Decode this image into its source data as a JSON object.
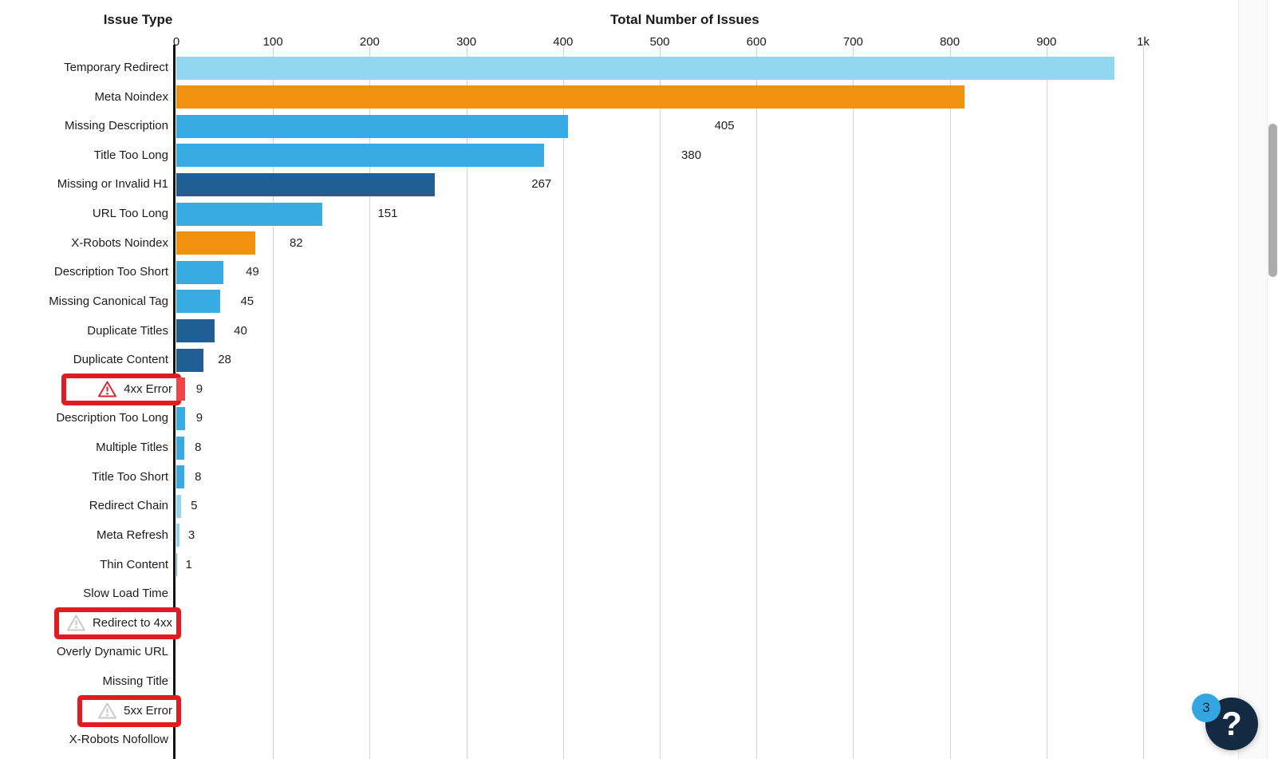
{
  "chart_data": {
    "type": "bar",
    "orientation": "horizontal",
    "title": "Total Number of Issues",
    "category_axis_label": "Issue Type",
    "xlim": [
      0,
      1000
    ],
    "x_ticks": [
      "0",
      "100",
      "200",
      "300",
      "400",
      "500",
      "600",
      "700",
      "800",
      "900",
      "1k"
    ],
    "grid": "vertical-gridlines-on",
    "rows": [
      {
        "label": "Temporary Redirect",
        "value": 970,
        "color": "light_blue",
        "show_value": false,
        "highlight": false,
        "icon": null
      },
      {
        "label": "Meta Noindex",
        "value": 815,
        "color": "orange",
        "show_value": false,
        "highlight": false,
        "icon": null
      },
      {
        "label": "Missing Description",
        "value": 405,
        "color": "blue",
        "show_value": true,
        "highlight": false,
        "icon": null
      },
      {
        "label": "Title Too Long",
        "value": 380,
        "color": "blue",
        "show_value": true,
        "highlight": false,
        "icon": null
      },
      {
        "label": "Missing or Invalid H1",
        "value": 267,
        "color": "dark_blue",
        "show_value": true,
        "highlight": false,
        "icon": null
      },
      {
        "label": "URL Too Long",
        "value": 151,
        "color": "blue",
        "show_value": true,
        "highlight": false,
        "icon": null
      },
      {
        "label": "X-Robots Noindex",
        "value": 82,
        "color": "orange",
        "show_value": true,
        "highlight": false,
        "icon": null
      },
      {
        "label": "Description Too Short",
        "value": 49,
        "color": "blue",
        "show_value": true,
        "highlight": false,
        "icon": null
      },
      {
        "label": "Missing Canonical Tag",
        "value": 45,
        "color": "blue",
        "show_value": true,
        "highlight": false,
        "icon": null
      },
      {
        "label": "Duplicate Titles",
        "value": 40,
        "color": "dark_blue",
        "show_value": true,
        "highlight": false,
        "icon": null
      },
      {
        "label": "Duplicate Content",
        "value": 28,
        "color": "dark_blue",
        "show_value": true,
        "highlight": false,
        "icon": null
      },
      {
        "label": "4xx Error",
        "value": 9,
        "color": "red",
        "show_value": true,
        "highlight": true,
        "icon": "warning-red"
      },
      {
        "label": "Description Too Long",
        "value": 9,
        "color": "blue",
        "show_value": true,
        "highlight": false,
        "icon": null
      },
      {
        "label": "Multiple Titles",
        "value": 8,
        "color": "blue",
        "show_value": true,
        "highlight": false,
        "icon": null
      },
      {
        "label": "Title Too Short",
        "value": 8,
        "color": "blue",
        "show_value": true,
        "highlight": false,
        "icon": null
      },
      {
        "label": "Redirect Chain",
        "value": 5,
        "color": "light_blue",
        "show_value": true,
        "highlight": false,
        "icon": null
      },
      {
        "label": "Meta Refresh",
        "value": 3,
        "color": "light_blue",
        "show_value": true,
        "highlight": false,
        "icon": null
      },
      {
        "label": "Thin Content",
        "value": 1,
        "color": "blue",
        "show_value": true,
        "highlight": false,
        "icon": null
      },
      {
        "label": "Slow Load Time",
        "value": 0,
        "color": null,
        "show_value": false,
        "highlight": false,
        "icon": null
      },
      {
        "label": "Redirect to 4xx",
        "value": 0,
        "color": null,
        "show_value": false,
        "highlight": true,
        "icon": "warning-gray"
      },
      {
        "label": "Overly Dynamic URL",
        "value": 0,
        "color": null,
        "show_value": false,
        "highlight": false,
        "icon": null
      },
      {
        "label": "Missing Title",
        "value": 0,
        "color": null,
        "show_value": false,
        "highlight": false,
        "icon": null
      },
      {
        "label": "5xx Error",
        "value": 0,
        "color": null,
        "show_value": false,
        "highlight": true,
        "icon": "warning-gray"
      },
      {
        "label": "X-Robots Nofollow",
        "value": 0,
        "color": null,
        "show_value": false,
        "highlight": false,
        "icon": null
      }
    ],
    "highlighted_categories": [
      "4xx Error",
      "Redirect to 4xx",
      "5xx Error"
    ]
  },
  "colors": {
    "light_blue": "#92D7F0",
    "blue": "#3AABE2",
    "dark_blue": "#215E95",
    "orange": "#F0920E",
    "red": "#EE444A",
    "highlight_border": "#E11B21",
    "warning_red": "#D8232B",
    "warning_gray": "#C9C9C9",
    "gridline": "#CDD3D5",
    "axis": "#121212",
    "help_navy": "#132A42",
    "badge_blue": "#33A6DF",
    "scrollbar_gray": "#ABABAB"
  },
  "help_widget": {
    "question_mark": "?",
    "badge_count": "3"
  }
}
